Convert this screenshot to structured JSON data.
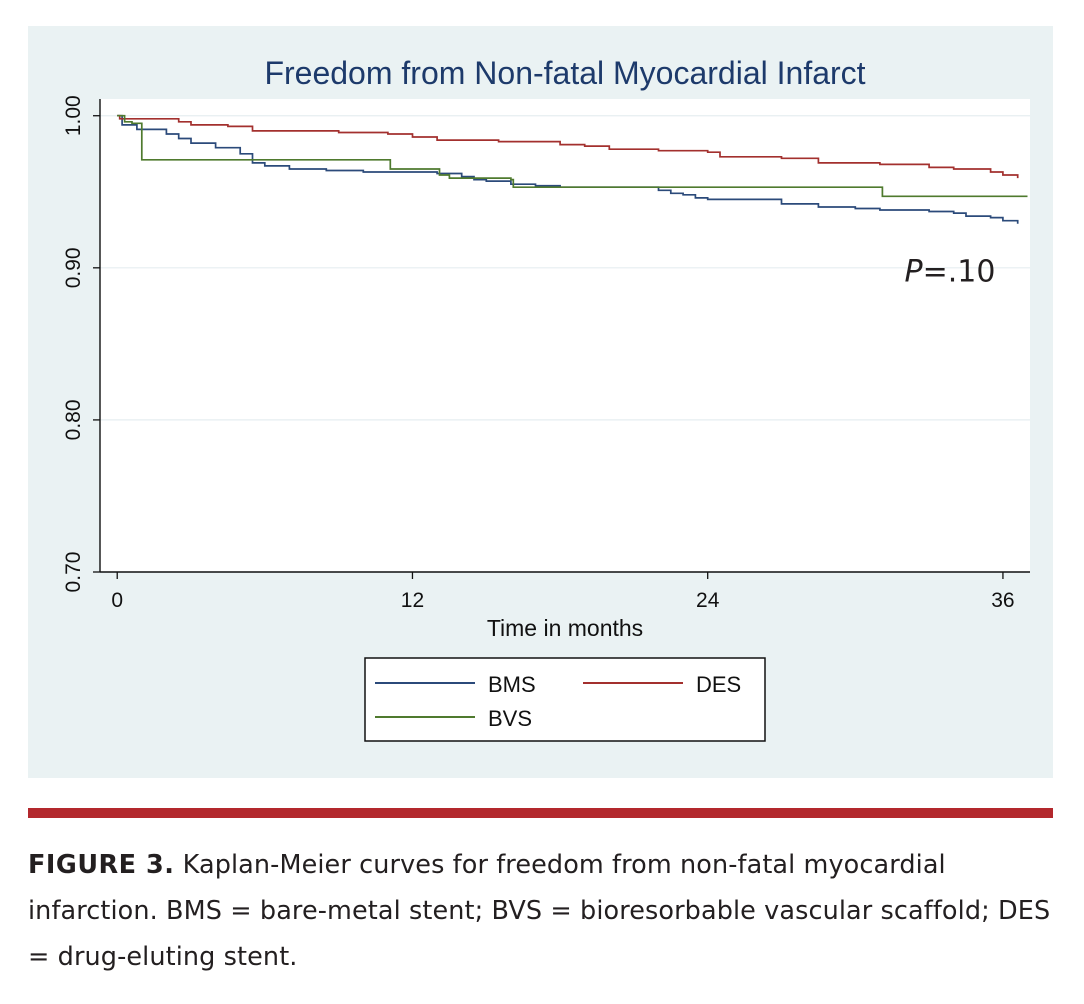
{
  "chart_data": {
    "type": "line",
    "title": "Freedom from Non-fatal Myocardial Infarct",
    "xlabel": "Time in months",
    "ylabel": "",
    "xlim": [
      -0.7,
      37.1
    ],
    "ylim": [
      0.7,
      1.011
    ],
    "xticks": [
      0,
      12,
      24,
      36
    ],
    "xtick_labels": [
      "0",
      "12",
      "24",
      "36"
    ],
    "yticks": [
      0.7,
      0.8,
      0.9,
      1.0
    ],
    "ytick_labels": [
      "0.70",
      "0.80",
      "0.90",
      "1.00"
    ],
    "grid": true,
    "legend_position": "bottom",
    "annotation": {
      "p_label": "P",
      "p_value": "=.10",
      "x": 32.0,
      "y": 0.891
    },
    "series": [
      {
        "name": "BMS",
        "color": "#2b4a7a",
        "step": true,
        "points": [
          [
            0,
            1.0
          ],
          [
            0.2,
            0.994
          ],
          [
            0.8,
            0.991
          ],
          [
            2.0,
            0.988
          ],
          [
            2.5,
            0.985
          ],
          [
            3.0,
            0.982
          ],
          [
            4.0,
            0.979
          ],
          [
            5.0,
            0.975
          ],
          [
            5.5,
            0.969
          ],
          [
            6.0,
            0.967
          ],
          [
            7.0,
            0.965
          ],
          [
            8.5,
            0.964
          ],
          [
            10.0,
            0.963
          ],
          [
            13.0,
            0.962
          ],
          [
            14.0,
            0.96
          ],
          [
            14.5,
            0.958
          ],
          [
            15.0,
            0.957
          ],
          [
            16.0,
            0.955
          ],
          [
            17.0,
            0.954
          ],
          [
            18.0,
            0.953
          ],
          [
            21.0,
            0.953
          ],
          [
            22.0,
            0.951
          ],
          [
            22.5,
            0.949
          ],
          [
            23.0,
            0.948
          ],
          [
            23.5,
            0.946
          ],
          [
            24.0,
            0.945
          ],
          [
            26.0,
            0.945
          ],
          [
            27.0,
            0.942
          ],
          [
            28.5,
            0.94
          ],
          [
            30.0,
            0.939
          ],
          [
            31.0,
            0.938
          ],
          [
            33.0,
            0.937
          ],
          [
            34.0,
            0.936
          ],
          [
            34.5,
            0.934
          ],
          [
            35.5,
            0.933
          ],
          [
            36.0,
            0.931
          ],
          [
            36.6,
            0.929
          ]
        ]
      },
      {
        "name": "DES",
        "color": "#a3302e",
        "step": true,
        "points": [
          [
            0,
            1.0
          ],
          [
            0.1,
            0.998
          ],
          [
            2.0,
            0.998
          ],
          [
            2.5,
            0.996
          ],
          [
            3.0,
            0.994
          ],
          [
            4.5,
            0.993
          ],
          [
            5.5,
            0.99
          ],
          [
            8.0,
            0.99
          ],
          [
            9.0,
            0.989
          ],
          [
            11.0,
            0.988
          ],
          [
            12.0,
            0.986
          ],
          [
            13.0,
            0.984
          ],
          [
            15.5,
            0.983
          ],
          [
            18.0,
            0.981
          ],
          [
            19.0,
            0.98
          ],
          [
            20.0,
            0.978
          ],
          [
            22.0,
            0.977
          ],
          [
            24.0,
            0.976
          ],
          [
            24.5,
            0.973
          ],
          [
            25.0,
            0.973
          ],
          [
            27.0,
            0.972
          ],
          [
            28.5,
            0.969
          ],
          [
            30.0,
            0.969
          ],
          [
            31.0,
            0.968
          ],
          [
            33.0,
            0.966
          ],
          [
            34.0,
            0.965
          ],
          [
            35.5,
            0.963
          ],
          [
            36.0,
            0.961
          ],
          [
            36.6,
            0.959
          ]
        ]
      },
      {
        "name": "BVS",
        "color": "#4f7a2e",
        "step": true,
        "points": [
          [
            0,
            1.0
          ],
          [
            0.3,
            0.996
          ],
          [
            0.6,
            0.995
          ],
          [
            1.0,
            0.971
          ],
          [
            5.5,
            0.971
          ],
          [
            11.0,
            0.971
          ],
          [
            11.1,
            0.965
          ],
          [
            13.0,
            0.965
          ],
          [
            13.1,
            0.961
          ],
          [
            13.5,
            0.959
          ],
          [
            15.0,
            0.959
          ],
          [
            16.0,
            0.958
          ],
          [
            16.1,
            0.953
          ],
          [
            20.0,
            0.953
          ],
          [
            31.0,
            0.953
          ],
          [
            31.1,
            0.947
          ],
          [
            37.0,
            0.947
          ]
        ]
      }
    ]
  },
  "caption": {
    "label": "FIGURE 3.",
    "text": " Kaplan-Meier curves for freedom from non-fatal myocardial infarction. BMS = bare-metal stent; BVS = bioresorbable vascular scaffold; DES = drug-eluting stent."
  }
}
